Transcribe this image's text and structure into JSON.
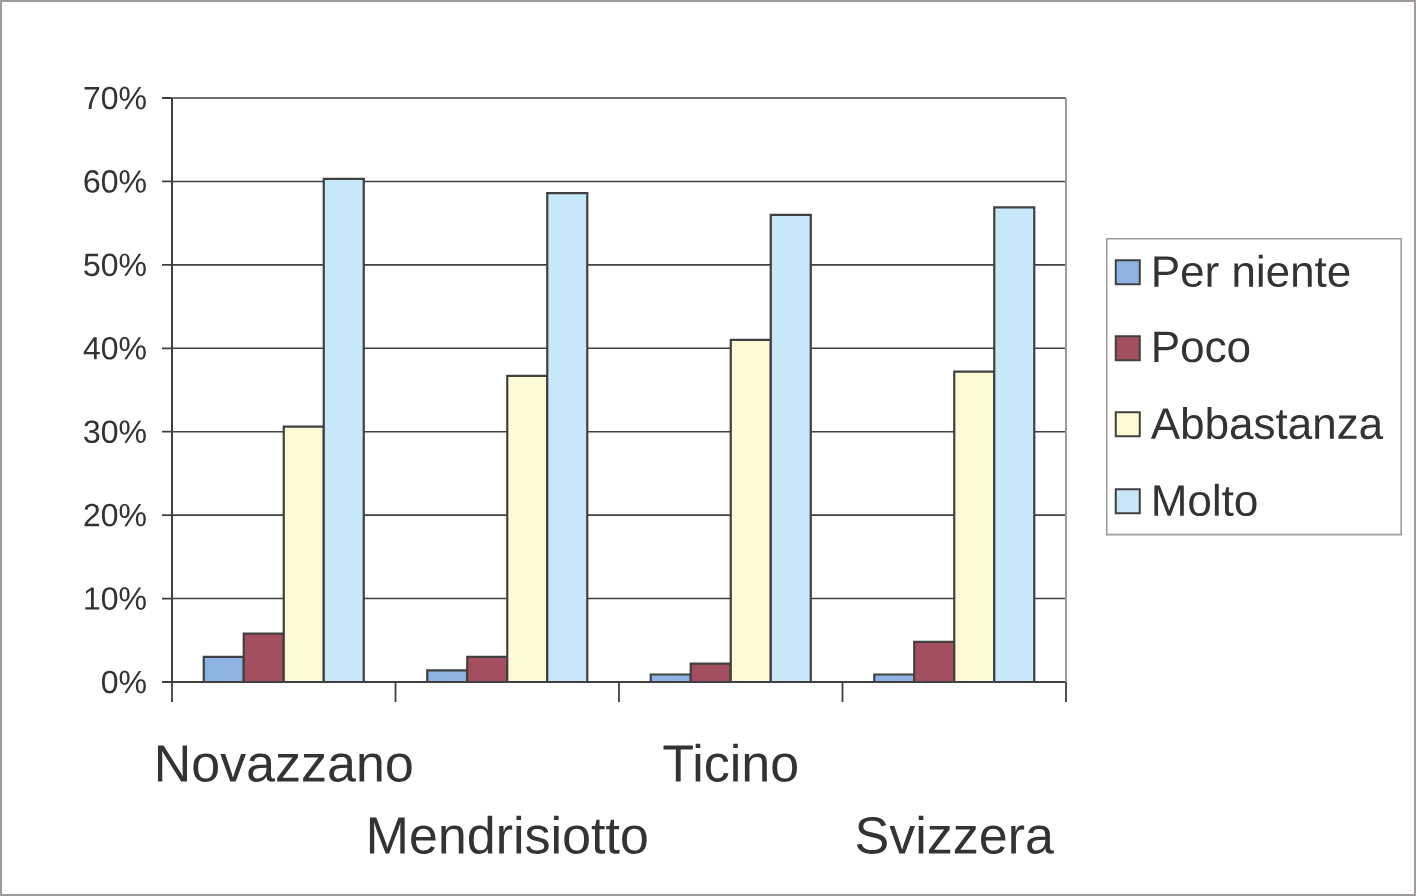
{
  "chart_data": {
    "type": "bar",
    "categories": [
      "Novazzano",
      "Mendrisiotto",
      "Ticino",
      "Svizzera"
    ],
    "series": [
      {
        "name": "Per niente",
        "color": "#8db3e2",
        "values": [
          3.0,
          1.4,
          0.9,
          0.9
        ]
      },
      {
        "name": "Poco",
        "color": "#a34f5f",
        "values": [
          5.8,
          3.0,
          2.2,
          4.8
        ]
      },
      {
        "name": "Abbastanza",
        "color": "#fffad6",
        "values": [
          30.6,
          36.7,
          41.0,
          37.2
        ]
      },
      {
        "name": "Molto",
        "color": "#c6e8f8",
        "values": [
          60.3,
          58.6,
          56.0,
          56.9
        ]
      }
    ],
    "ylim": [
      0,
      70
    ],
    "yticks": [
      {
        "value": 0,
        "label": "0%"
      },
      {
        "value": 10,
        "label": "10%"
      },
      {
        "value": 20,
        "label": "20%"
      },
      {
        "value": 30,
        "label": "30%"
      },
      {
        "value": 40,
        "label": "40%"
      },
      {
        "value": 50,
        "label": "50%"
      },
      {
        "value": 60,
        "label": "60%"
      },
      {
        "value": 70,
        "label": "70%"
      }
    ],
    "grid": "y",
    "legend": "right"
  }
}
